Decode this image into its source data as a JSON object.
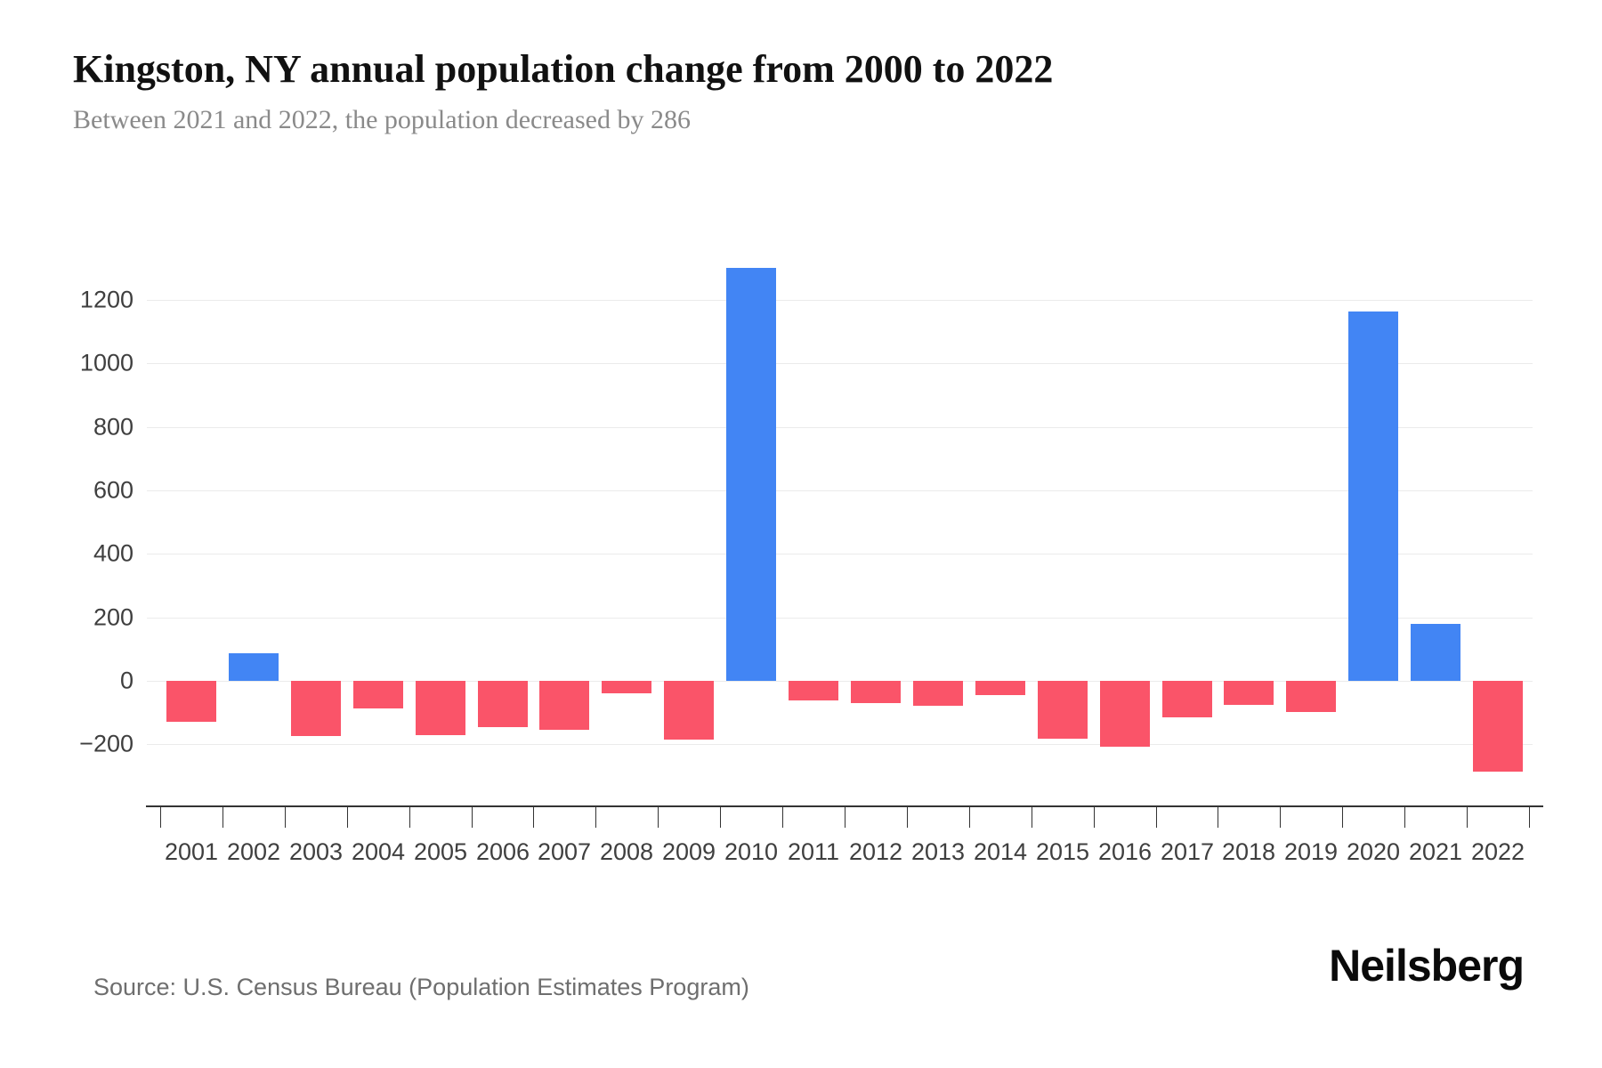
{
  "header": {
    "title": "Kingston, NY annual population change from 2000 to 2022",
    "subtitle": "Between 2021 and 2022, the population decreased by 286"
  },
  "footer": {
    "source": "Source: U.S. Census Bureau (Population Estimates Program)",
    "brand": "Neilsberg"
  },
  "chart_data": {
    "type": "bar",
    "title": "Kingston, NY annual population change from 2000 to 2022",
    "subtitle": "Between 2021 and 2022, the population decreased by 286",
    "xlabel": "",
    "ylabel": "",
    "categories": [
      "2001",
      "2002",
      "2003",
      "2004",
      "2005",
      "2006",
      "2007",
      "2008",
      "2009",
      "2010",
      "2011",
      "2012",
      "2013",
      "2014",
      "2015",
      "2016",
      "2017",
      "2018",
      "2019",
      "2020",
      "2021",
      "2022"
    ],
    "values": [
      -129,
      88,
      -174,
      -88,
      -171,
      -145,
      -155,
      -40,
      -185,
      1300,
      -61,
      -70,
      -78,
      -46,
      -183,
      -207,
      -116,
      -77,
      -97,
      1163,
      180,
      -286
    ],
    "yticks": [
      -200,
      0,
      200,
      400,
      600,
      800,
      1000,
      1200
    ],
    "ylim": [
      -310,
      1310
    ],
    "grid": true,
    "legend": false,
    "colors": {
      "positive": "#4285F4",
      "negative": "#FA5469"
    }
  }
}
